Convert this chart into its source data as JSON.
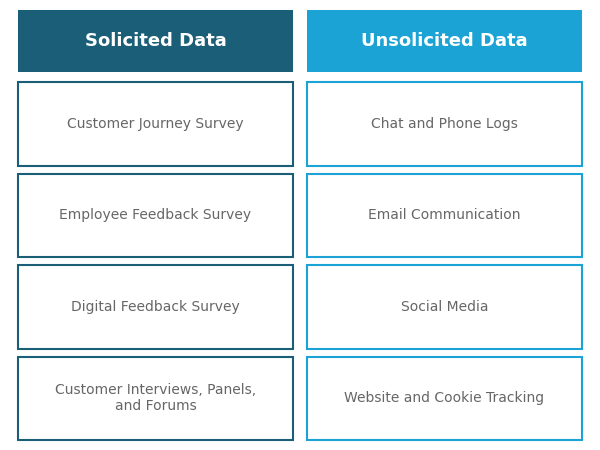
{
  "title_left": "Solicited Data",
  "title_right": "Unsolicited Data",
  "solicited_items": [
    "Customer Journey Survey",
    "Employee Feedback Survey",
    "Digital Feedback Survey",
    "Customer Interviews, Panels,\nand Forums"
  ],
  "unsolicited_items": [
    "Chat and Phone Logs",
    "Email Communication",
    "Social Media",
    "Website and Cookie Tracking"
  ],
  "color_left_header": "#1b5e78",
  "color_right_header": "#1aa3d4",
  "color_left_border": "#1b5e78",
  "color_right_border": "#1aa3d4",
  "header_text_color": "#ffffff",
  "item_text_color": "#666666",
  "background_color": "#ffffff",
  "header_fontsize": 13,
  "item_fontsize": 10
}
